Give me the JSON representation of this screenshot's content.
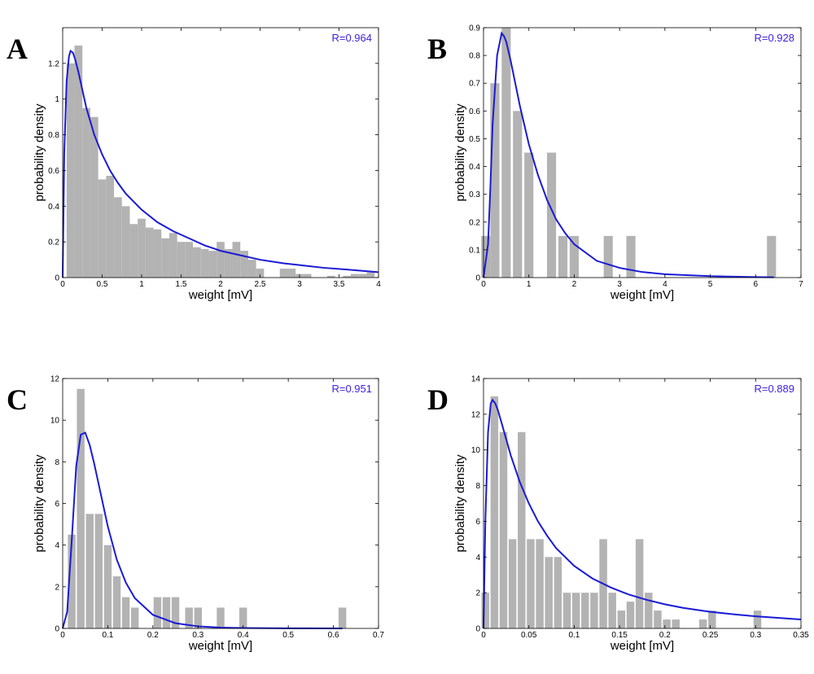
{
  "chart_data": [
    {
      "type": "bar",
      "panel": "A",
      "annotation": "R=0.964",
      "xlabel": "weight [mV]",
      "ylabel": "probability density",
      "xlim": [
        0,
        4
      ],
      "ylim": [
        0,
        1.4
      ],
      "xticks": [
        0,
        0.5,
        1,
        1.5,
        2,
        2.5,
        3,
        3.5,
        4
      ],
      "xtick_labels": [
        "0",
        "0.5",
        "1",
        "1.5",
        "2",
        "2.5",
        "3",
        "3.5",
        "4"
      ],
      "yticks": [
        0,
        0.2,
        0.4,
        0.6,
        0.8,
        1,
        1.2
      ],
      "ytick_labels": [
        "0",
        "0.2",
        "0.4",
        "0.6",
        "0.8",
        "1",
        "1.2"
      ],
      "bin_width": 0.1,
      "x": [
        0.1,
        0.2,
        0.3,
        0.4,
        0.5,
        0.6,
        0.7,
        0.8,
        0.9,
        1.0,
        1.1,
        1.2,
        1.3,
        1.4,
        1.5,
        1.6,
        1.7,
        1.8,
        1.9,
        2.0,
        2.1,
        2.2,
        2.3,
        2.4,
        2.5,
        2.8,
        2.9,
        3.0,
        3.1,
        3.4,
        3.6,
        3.7,
        3.8,
        3.9
      ],
      "values": [
        1.2,
        1.3,
        0.95,
        0.9,
        0.55,
        0.57,
        0.45,
        0.4,
        0.3,
        0.33,
        0.28,
        0.27,
        0.22,
        0.25,
        0.2,
        0.2,
        0.17,
        0.16,
        0.15,
        0.2,
        0.16,
        0.2,
        0.15,
        0.1,
        0.05,
        0.05,
        0.05,
        0.02,
        0.02,
        0.01,
        0.01,
        0.02,
        0.02,
        0.03
      ],
      "fit_curve": {
        "x": [
          0.0,
          0.02,
          0.05,
          0.08,
          0.1,
          0.13,
          0.16,
          0.2,
          0.25,
          0.3,
          0.4,
          0.5,
          0.6,
          0.7,
          0.8,
          1.0,
          1.2,
          1.4,
          1.6,
          1.8,
          2.0,
          2.2,
          2.5,
          2.8,
          3.0,
          3.3,
          3.6,
          4.0
        ],
        "y": [
          0.0,
          0.7,
          1.1,
          1.24,
          1.27,
          1.26,
          1.22,
          1.15,
          1.05,
          0.95,
          0.8,
          0.69,
          0.6,
          0.53,
          0.47,
          0.38,
          0.31,
          0.26,
          0.22,
          0.18,
          0.15,
          0.13,
          0.1,
          0.08,
          0.07,
          0.055,
          0.045,
          0.03
        ]
      }
    },
    {
      "type": "bar",
      "panel": "B",
      "annotation": "R=0.928",
      "xlabel": "weight [mV]",
      "ylabel": "probability density",
      "xlim": [
        0,
        7
      ],
      "ylim": [
        0,
        0.9
      ],
      "xticks": [
        0,
        1,
        2,
        3,
        4,
        5,
        6,
        7
      ],
      "xtick_labels": [
        "0",
        "1",
        "2",
        "3",
        "4",
        "5",
        "6",
        "7"
      ],
      "yticks": [
        0,
        0.1,
        0.2,
        0.3,
        0.4,
        0.5,
        0.6,
        0.7,
        0.8,
        0.9
      ],
      "ytick_labels": [
        "0",
        "0.1",
        "0.2",
        "0.3",
        "0.4",
        "0.5",
        "0.6",
        "0.7",
        "0.8",
        "0.9"
      ],
      "bin_width": 0.2,
      "x": [
        0.05,
        0.25,
        0.5,
        0.75,
        1.0,
        1.5,
        1.75,
        2.0,
        2.75,
        3.25,
        6.35
      ],
      "values": [
        0.15,
        0.7,
        0.9,
        0.6,
        0.45,
        0.45,
        0.15,
        0.15,
        0.15,
        0.15,
        0.15
      ],
      "fit_curve": {
        "x": [
          0.0,
          0.1,
          0.15,
          0.2,
          0.3,
          0.4,
          0.45,
          0.5,
          0.6,
          0.7,
          0.8,
          1.0,
          1.2,
          1.4,
          1.6,
          1.8,
          2.0,
          2.5,
          3.0,
          3.5,
          4.0,
          5.0,
          6.0,
          6.4
        ],
        "y": [
          0.0,
          0.12,
          0.32,
          0.55,
          0.8,
          0.88,
          0.87,
          0.85,
          0.78,
          0.7,
          0.62,
          0.48,
          0.37,
          0.28,
          0.21,
          0.16,
          0.12,
          0.06,
          0.035,
          0.02,
          0.012,
          0.005,
          0.002,
          0.001
        ]
      }
    },
    {
      "type": "bar",
      "panel": "C",
      "annotation": "R=0.951",
      "xlabel": "weight [mV]",
      "ylabel": "probability density",
      "xlim": [
        0,
        0.7
      ],
      "ylim": [
        0,
        12
      ],
      "xticks": [
        0,
        0.1,
        0.2,
        0.3,
        0.4,
        0.5,
        0.6,
        0.7
      ],
      "xtick_labels": [
        "0",
        "0.1",
        "0.2",
        "0.3",
        "0.4",
        "0.5",
        "0.6",
        "0.7"
      ],
      "yticks": [
        0,
        2,
        4,
        6,
        8,
        10,
        12
      ],
      "ytick_labels": [
        "0",
        "2",
        "4",
        "6",
        "8",
        "10",
        "12"
      ],
      "bin_width": 0.017,
      "x": [
        0.02,
        0.04,
        0.06,
        0.08,
        0.1,
        0.12,
        0.14,
        0.16,
        0.21,
        0.23,
        0.25,
        0.28,
        0.3,
        0.35,
        0.4,
        0.62
      ],
      "values": [
        4.5,
        11.5,
        5.5,
        5.5,
        4.0,
        2.5,
        1.5,
        1.0,
        1.5,
        1.5,
        1.5,
        1.0,
        1.0,
        1.0,
        1.0,
        1.0
      ],
      "fit_curve": {
        "x": [
          0.0,
          0.01,
          0.02,
          0.03,
          0.04,
          0.05,
          0.06,
          0.07,
          0.08,
          0.1,
          0.12,
          0.14,
          0.16,
          0.2,
          0.25,
          0.3,
          0.35,
          0.4,
          0.5,
          0.62
        ],
        "y": [
          0.0,
          0.8,
          4.2,
          7.8,
          9.3,
          9.4,
          8.8,
          7.9,
          6.9,
          4.9,
          3.3,
          2.2,
          1.45,
          0.65,
          0.25,
          0.1,
          0.04,
          0.02,
          0.005,
          0.001
        ]
      }
    },
    {
      "type": "bar",
      "panel": "D",
      "annotation": "R=0.889",
      "xlabel": "weight [mV]",
      "ylabel": "probability density",
      "xlim": [
        0,
        0.35
      ],
      "ylim": [
        0,
        14
      ],
      "xticks": [
        0,
        0.05,
        0.1,
        0.15,
        0.2,
        0.25,
        0.3,
        0.35
      ],
      "xtick_labels": [
        "0",
        "0.05",
        "0.1",
        "0.15",
        "0.2",
        "0.25",
        "0.3",
        "0.35"
      ],
      "yticks": [
        0,
        2,
        4,
        6,
        8,
        10,
        12,
        14
      ],
      "ytick_labels": [
        "0",
        "2",
        "4",
        "6",
        "8",
        "10",
        "12",
        "14"
      ],
      "bin_width": 0.0085,
      "x": [
        0.002,
        0.012,
        0.022,
        0.032,
        0.042,
        0.052,
        0.062,
        0.072,
        0.082,
        0.092,
        0.102,
        0.112,
        0.122,
        0.132,
        0.142,
        0.152,
        0.162,
        0.172,
        0.182,
        0.192,
        0.202,
        0.212,
        0.242,
        0.252,
        0.302
      ],
      "values": [
        2,
        13,
        11,
        5,
        11,
        5,
        5,
        4,
        4,
        2,
        2,
        2,
        2,
        5,
        2,
        1,
        1.5,
        5,
        2,
        1,
        0.5,
        0.5,
        0.5,
        1,
        1
      ],
      "fit_curve": {
        "x": [
          0.0,
          0.002,
          0.005,
          0.008,
          0.01,
          0.013,
          0.016,
          0.02,
          0.025,
          0.03,
          0.04,
          0.05,
          0.06,
          0.07,
          0.08,
          0.1,
          0.12,
          0.14,
          0.16,
          0.18,
          0.2,
          0.22,
          0.25,
          0.28,
          0.3,
          0.35
        ],
        "y": [
          0.0,
          6.0,
          11.0,
          12.6,
          12.8,
          12.6,
          12.2,
          11.5,
          10.6,
          9.7,
          8.2,
          7.0,
          6.0,
          5.2,
          4.5,
          3.5,
          2.8,
          2.3,
          1.9,
          1.6,
          1.35,
          1.15,
          0.93,
          0.77,
          0.68,
          0.5
        ]
      }
    }
  ]
}
